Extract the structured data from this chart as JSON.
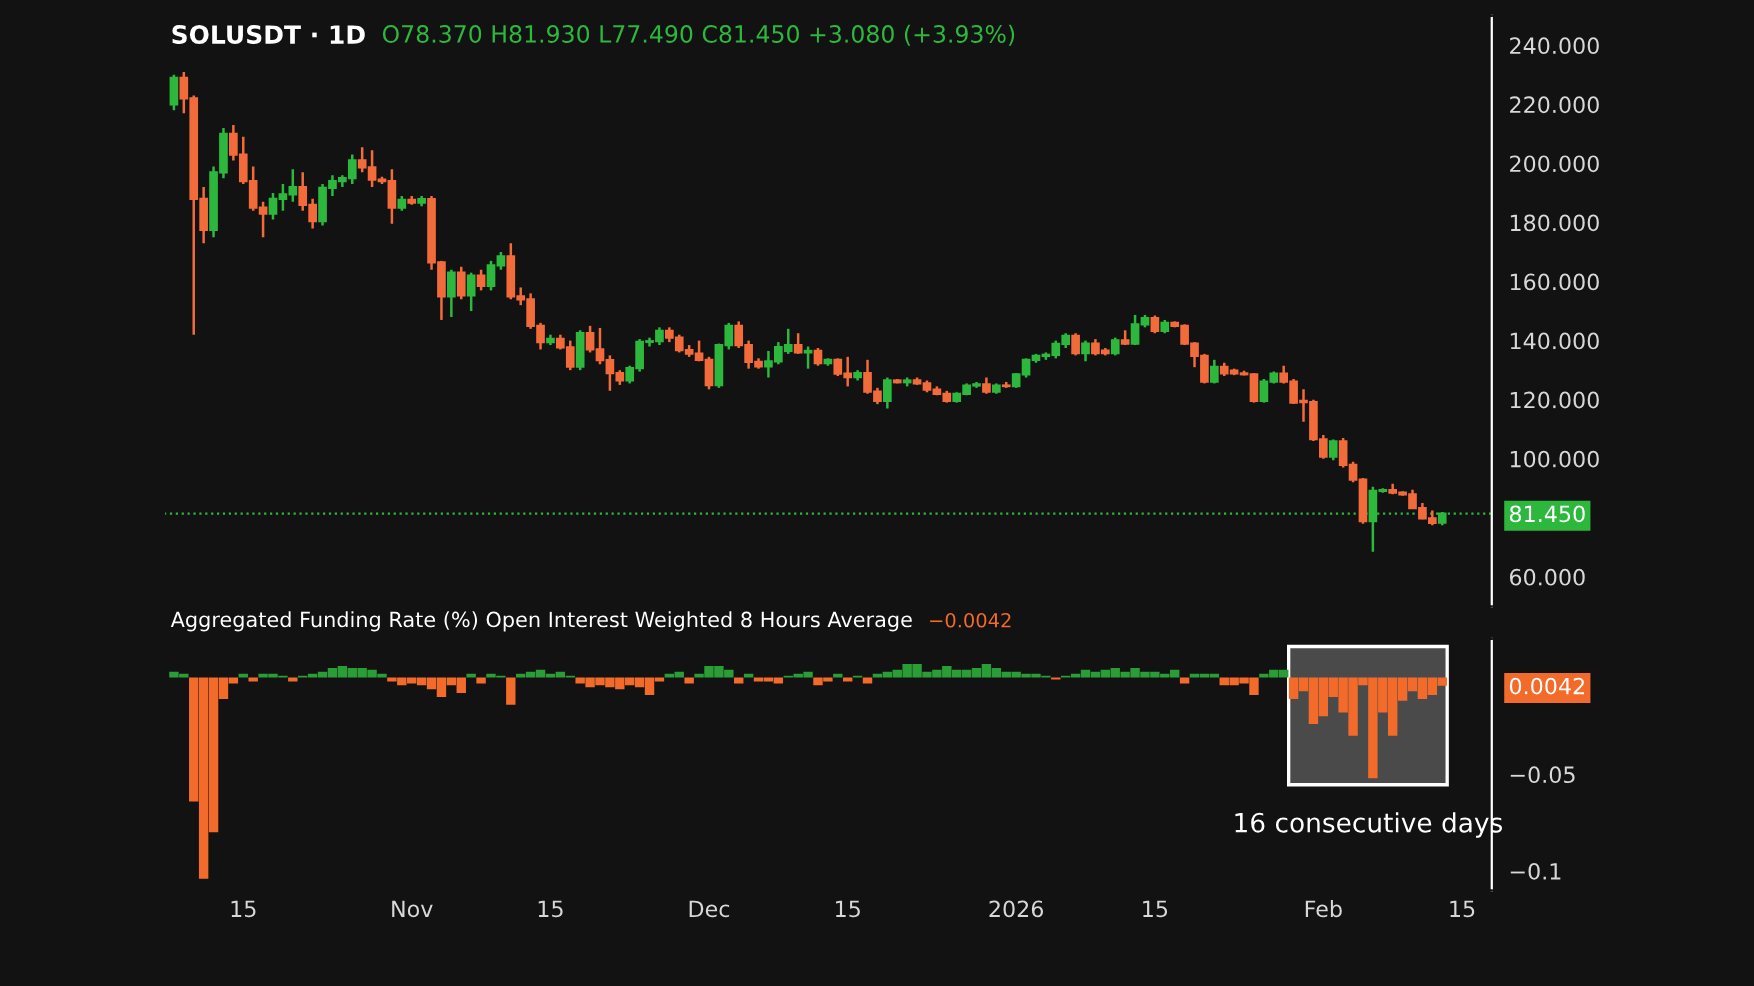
{
  "chart_data": [
    {
      "type": "candlestick",
      "title": "SOLUSDT · 1D",
      "annotations": [
        "O78.370 H81.930 L77.490 C81.450 +3.080 (+3.93%)"
      ],
      "x": [
        "2025-10-08",
        "2025-10-09",
        "2025-10-10",
        "2025-10-11",
        "2025-10-12",
        "2025-10-13",
        "2025-10-14",
        "2025-10-15",
        "2025-10-16",
        "2025-10-17",
        "2025-10-18",
        "2025-10-19",
        "2025-10-20",
        "2025-10-21",
        "2025-10-22",
        "2025-10-23",
        "2025-10-24",
        "2025-10-25",
        "2025-10-26",
        "2025-10-27",
        "2025-10-28",
        "2025-10-29",
        "2025-10-30",
        "2025-10-31",
        "2025-11-01",
        "2025-11-02",
        "2025-11-03",
        "2025-11-04",
        "2025-11-05",
        "2025-11-06",
        "2025-11-07",
        "2025-11-08",
        "2025-11-09",
        "2025-11-10",
        "2025-11-11",
        "2025-11-12",
        "2025-11-13",
        "2025-11-14",
        "2025-11-15",
        "2025-11-16",
        "2025-11-17",
        "2025-11-18",
        "2025-11-19",
        "2025-11-20",
        "2025-11-21",
        "2025-11-22",
        "2025-11-23",
        "2025-11-24",
        "2025-11-25",
        "2025-11-26",
        "2025-11-27",
        "2025-11-28",
        "2025-11-29",
        "2025-11-30",
        "2025-12-01",
        "2025-12-02",
        "2025-12-03",
        "2025-12-04",
        "2025-12-05",
        "2025-12-06",
        "2025-12-07",
        "2025-12-08",
        "2025-12-09",
        "2025-12-10",
        "2025-12-11",
        "2025-12-12",
        "2025-12-13",
        "2025-12-14",
        "2025-12-15",
        "2025-12-16",
        "2025-12-17",
        "2025-12-18",
        "2025-12-19",
        "2025-12-20",
        "2025-12-21",
        "2025-12-22",
        "2025-12-23",
        "2025-12-24",
        "2025-12-25",
        "2025-12-26",
        "2025-12-27",
        "2025-12-28",
        "2025-12-29",
        "2025-12-30",
        "2025-12-31",
        "2026-01-01",
        "2026-01-02",
        "2026-01-03",
        "2026-01-04",
        "2026-01-05",
        "2026-01-06",
        "2026-01-07",
        "2026-01-08",
        "2026-01-09",
        "2026-01-10",
        "2026-01-11",
        "2026-01-12",
        "2026-01-13",
        "2026-01-14",
        "2026-01-15",
        "2026-01-16",
        "2026-01-17",
        "2026-01-18",
        "2026-01-19",
        "2026-01-20",
        "2026-01-21",
        "2026-01-22",
        "2026-01-23",
        "2026-01-24",
        "2026-01-25",
        "2026-01-26",
        "2026-01-27",
        "2026-01-28",
        "2026-01-29",
        "2026-01-30",
        "2026-01-31",
        "2026-02-01",
        "2026-02-02",
        "2026-02-03",
        "2026-02-04",
        "2026-02-05",
        "2026-02-06",
        "2026-02-07",
        "2026-02-08",
        "2026-02-09",
        "2026-02-10",
        "2026-02-11",
        "2026-02-12",
        "2026-02-13"
      ],
      "ohlc": [
        [
          220,
          230,
          218,
          229
        ],
        [
          229,
          231,
          217,
          222
        ],
        [
          222,
          223,
          142,
          188
        ],
        [
          188,
          192,
          173,
          177.5
        ],
        [
          177.5,
          199,
          175,
          197
        ],
        [
          197,
          212,
          195,
          210
        ],
        [
          210,
          213,
          201,
          203
        ],
        [
          203,
          209,
          193,
          194
        ],
        [
          194,
          199,
          184,
          185
        ],
        [
          185,
          187,
          175,
          183
        ],
        [
          183,
          190,
          181,
          188
        ],
        [
          188,
          193,
          184,
          189.5
        ],
        [
          189.5,
          198,
          187,
          192
        ],
        [
          192,
          197,
          184,
          186
        ],
        [
          186,
          188,
          178,
          180.5
        ],
        [
          180.5,
          193,
          179,
          191.7
        ],
        [
          191.7,
          196,
          189,
          194
        ],
        [
          194,
          196,
          192,
          195
        ],
        [
          195,
          203,
          193,
          201
        ],
        [
          201,
          205.5,
          197,
          198.7
        ],
        [
          198.7,
          204.5,
          192,
          194.5
        ],
        [
          194.5,
          195.5,
          193,
          194
        ],
        [
          194,
          198,
          179.6,
          185
        ],
        [
          185,
          189,
          184,
          187.7
        ],
        [
          187.7,
          189,
          186,
          186.7
        ],
        [
          186.7,
          189,
          185.5,
          187.9
        ],
        [
          187.9,
          189,
          164,
          166.5
        ],
        [
          166.5,
          167,
          147,
          155
        ],
        [
          155,
          164,
          148,
          163
        ],
        [
          163,
          165,
          154,
          155.3
        ],
        [
          155.3,
          163,
          150,
          162
        ],
        [
          162,
          164,
          157,
          158.5
        ],
        [
          158.5,
          167,
          157,
          165.5
        ],
        [
          165.5,
          170,
          164,
          168.5
        ],
        [
          168.5,
          173,
          154,
          155
        ],
        [
          155,
          158,
          152,
          154
        ],
        [
          154,
          156,
          144,
          145
        ],
        [
          145,
          146,
          137,
          139.5
        ],
        [
          139.5,
          142,
          138.5,
          140.6
        ],
        [
          140.6,
          142,
          137,
          137.7
        ],
        [
          137.7,
          140,
          130,
          131.2
        ],
        [
          131.2,
          143.5,
          130,
          142.5
        ],
        [
          142.5,
          145,
          136,
          137
        ],
        [
          137,
          144.3,
          132,
          133.4
        ],
        [
          133.4,
          135,
          123,
          129
        ],
        [
          129,
          130,
          125,
          126.5
        ],
        [
          126.5,
          131.5,
          125.5,
          130.7
        ],
        [
          130.7,
          140.5,
          129.5,
          139.6
        ],
        [
          139.6,
          141,
          138,
          139.8
        ],
        [
          139.8,
          144.5,
          138.5,
          143.3
        ],
        [
          143.3,
          144.5,
          139.5,
          141
        ],
        [
          141,
          142,
          136,
          136.8
        ],
        [
          136.8,
          138.5,
          134.5,
          135.6
        ],
        [
          135.6,
          140,
          133,
          133.5
        ],
        [
          133.5,
          134.5,
          123.5,
          124.9
        ],
        [
          124.9,
          139,
          124,
          138.5
        ],
        [
          138.5,
          146,
          137,
          145
        ],
        [
          145,
          146.5,
          137.5,
          138.5
        ],
        [
          138.5,
          140,
          130.5,
          132.8
        ],
        [
          132.8,
          134,
          130.5,
          131.3
        ],
        [
          131.3,
          136.5,
          127.5,
          133
        ],
        [
          133,
          139.5,
          132,
          137.8
        ],
        [
          136.5,
          144,
          135.5,
          138.5
        ],
        [
          138.5,
          142.5,
          135.5,
          136
        ],
        [
          136,
          138,
          130.5,
          136.5
        ],
        [
          136.5,
          137.5,
          131.5,
          132.4
        ],
        [
          132.4,
          134,
          131.5,
          133.5
        ],
        [
          133.5,
          134,
          128,
          128.8
        ],
        [
          128.8,
          134.5,
          124.5,
          127.6
        ],
        [
          127.6,
          130,
          126.5,
          129
        ],
        [
          129,
          133.5,
          122,
          122.7
        ],
        [
          122.7,
          124,
          118.5,
          119.6
        ],
        [
          119.6,
          127.5,
          117,
          126.5
        ],
        [
          126.5,
          127,
          125.5,
          125.9
        ],
        [
          125.9,
          127.5,
          124.5,
          126.5
        ],
        [
          126.5,
          127.5,
          125,
          125.5
        ],
        [
          125.5,
          126.5,
          122.5,
          123.4
        ],
        [
          123.4,
          124.5,
          121.5,
          122
        ],
        [
          122,
          123,
          119,
          119.6
        ],
        [
          119.6,
          122.5,
          119,
          122
        ],
        [
          122,
          125.5,
          121.5,
          124.8
        ],
        [
          124.8,
          126,
          124,
          125.2
        ],
        [
          125.2,
          127.5,
          122,
          122.7
        ],
        [
          122.7,
          125.5,
          122,
          124.8
        ],
        [
          124.8,
          126,
          124,
          124.6
        ],
        [
          124.6,
          129,
          124,
          128.6
        ],
        [
          128.6,
          134,
          127.5,
          133.5
        ],
        [
          133.5,
          135.5,
          132.5,
          134.8
        ],
        [
          134.8,
          136,
          133.5,
          135.2
        ],
        [
          135.2,
          140,
          134,
          138.9
        ],
        [
          138.9,
          142.5,
          137.5,
          141.6
        ],
        [
          141.6,
          142.5,
          135,
          135.8
        ],
        [
          135.8,
          140,
          133,
          139
        ],
        [
          139,
          140.5,
          135,
          135.8
        ],
        [
          136.6,
          137.5,
          135,
          135.8
        ],
        [
          135.8,
          141,
          135,
          140.1
        ],
        [
          140.1,
          143.5,
          138.5,
          139
        ],
        [
          139,
          148.7,
          138.5,
          145.5
        ],
        [
          145.5,
          148.7,
          144.5,
          147.6
        ],
        [
          147.6,
          148.5,
          142.5,
          143.3
        ],
        [
          143.3,
          147,
          142.5,
          146
        ],
        [
          146,
          146.5,
          144.5,
          145
        ],
        [
          145,
          145.5,
          138.5,
          139
        ],
        [
          139,
          139.5,
          131,
          134.8
        ],
        [
          134.8,
          135.5,
          125.5,
          126.1
        ],
        [
          126.1,
          133.5,
          125.5,
          131.1
        ],
        [
          131.1,
          132.5,
          128,
          128.9
        ],
        [
          129.8,
          130.5,
          128.3,
          128.9
        ],
        [
          128.9,
          129.8,
          128.2,
          128.6
        ],
        [
          128.6,
          129,
          119,
          119.6
        ],
        [
          119.6,
          127,
          119,
          126.1
        ],
        [
          126.1,
          129.5,
          125.5,
          128.8
        ],
        [
          128.8,
          131.5,
          125.5,
          126.1
        ],
        [
          126.1,
          127,
          118.5,
          119
        ],
        [
          119.6,
          123.5,
          112.5,
          119.2
        ],
        [
          119.2,
          120,
          106,
          106.6
        ],
        [
          106.6,
          108,
          100,
          100.7
        ],
        [
          100.7,
          106.5,
          99.5,
          105.9
        ],
        [
          105.9,
          107,
          97,
          97.9
        ],
        [
          97.9,
          99,
          92,
          92.9
        ],
        [
          92.9,
          93.5,
          78,
          78.9
        ],
        [
          78.9,
          90.5,
          68.5,
          89.1
        ],
        [
          89.1,
          90,
          88.5,
          89.4
        ],
        [
          89.4,
          91.5,
          88,
          88.5
        ],
        [
          88.5,
          89,
          87.5,
          87.9
        ],
        [
          87.9,
          89.5,
          83,
          83.3
        ],
        [
          83.3,
          85,
          79.5,
          79.8
        ],
        [
          79.8,
          82.5,
          77.5,
          78.3
        ],
        [
          78.37,
          81.93,
          77.49,
          81.45
        ]
      ],
      "colors": [
        "#2db83d",
        "#f26b3a",
        "#f26b3a",
        "#f26b3a",
        "#2db83d",
        "#2db83d",
        "#f26b3a",
        "#f26b3a",
        "#f26b3a",
        "#f26b3a",
        "#2db83d",
        "#2db83d",
        "#2db83d",
        "#f26b3a",
        "#f26b3a",
        "#2db83d",
        "#2db83d",
        "#2db83d",
        "#2db83d",
        "#f26b3a",
        "#f26b3a",
        "#f26b3a",
        "#f26b3a",
        "#2db83d",
        "#f26b3a",
        "#2db83d",
        "#f26b3a",
        "#f26b3a",
        "#2db83d",
        "#f26b3a",
        "#2db83d",
        "#f26b3a",
        "#2db83d",
        "#2db83d",
        "#f26b3a",
        "#f26b3a",
        "#f26b3a",
        "#f26b3a",
        "#2db83d",
        "#f26b3a",
        "#f26b3a",
        "#2db83d",
        "#f26b3a",
        "#f26b3a",
        "#f26b3a",
        "#f26b3a",
        "#2db83d",
        "#2db83d",
        "#2db83d",
        "#2db83d",
        "#f26b3a",
        "#f26b3a",
        "#f26b3a",
        "#f26b3a",
        "#f26b3a",
        "#2db83d",
        "#2db83d",
        "#f26b3a",
        "#f26b3a",
        "#f26b3a",
        "#2db83d",
        "#2db83d",
        "#2db83d",
        "#f26b3a",
        "#2db83d",
        "#f26b3a",
        "#2db83d",
        "#f26b3a",
        "#f26b3a",
        "#2db83d",
        "#f26b3a",
        "#f26b3a",
        "#2db83d",
        "#f26b3a",
        "#2db83d",
        "#f26b3a",
        "#f26b3a",
        "#f26b3a",
        "#f26b3a",
        "#2db83d",
        "#2db83d",
        "#2db83d",
        "#f26b3a",
        "#2db83d",
        "#f26b3a",
        "#2db83d",
        "#2db83d",
        "#2db83d",
        "#2db83d",
        "#2db83d",
        "#2db83d",
        "#f26b3a",
        "#2db83d",
        "#f26b3a",
        "#f26b3a",
        "#2db83d",
        "#f26b3a",
        "#2db83d",
        "#2db83d",
        "#f26b3a",
        "#2db83d",
        "#f26b3a",
        "#f26b3a",
        "#f26b3a",
        "#f26b3a",
        "#2db83d",
        "#f26b3a",
        "#f26b3a",
        "#f26b3a",
        "#f26b3a",
        "#2db83d",
        "#2db83d",
        "#f26b3a",
        "#f26b3a",
        "#f26b3a",
        "#f26b3a",
        "#f26b3a",
        "#2db83d",
        "#f26b3a",
        "#f26b3a",
        "#f26b3a",
        "#2db83d",
        "#2db83d",
        "#f26b3a",
        "#f26b3a",
        "#f26b3a",
        "#f26b3a",
        "#f26b3a",
        "#2db83d"
      ],
      "xlim": [
        "2025-10-07",
        "2026-02-18"
      ],
      "ylim": [
        50,
        250
      ],
      "yticks": [
        {
          "value": 60,
          "label": "60.000"
        },
        {
          "value": 81.45,
          "label": "81.450"
        },
        {
          "value": 100,
          "label": "100.000"
        },
        {
          "value": 120,
          "label": "120.000"
        },
        {
          "value": 140,
          "label": "140.000"
        },
        {
          "value": 160,
          "label": "160.000"
        },
        {
          "value": 180,
          "label": "180.000"
        },
        {
          "value": 200,
          "label": "200.000"
        },
        {
          "value": 220,
          "label": "220.000"
        },
        {
          "value": 240,
          "label": "240.000"
        }
      ],
      "ref_lines": [
        {
          "axis": "y",
          "value": 81.45,
          "color": "#2db83d",
          "line_style": "dotted"
        }
      ],
      "tick_labels": "y",
      "grid": false
    },
    {
      "type": "bar",
      "title": "Aggregated Funding Rate (%) Open Interest Weighted 8 Hours Average",
      "annotations": [
        "−0.0042"
      ],
      "x": [
        "2025-10-08",
        "2025-10-09",
        "2025-10-10",
        "2025-10-11",
        "2025-10-12",
        "2025-10-13",
        "2025-10-14",
        "2025-10-15",
        "2025-10-16",
        "2025-10-17",
        "2025-10-18",
        "2025-10-19",
        "2025-10-20",
        "2025-10-21",
        "2025-10-22",
        "2025-10-23",
        "2025-10-24",
        "2025-10-25",
        "2025-10-26",
        "2025-10-27",
        "2025-10-28",
        "2025-10-29",
        "2025-10-30",
        "2025-10-31",
        "2025-11-01",
        "2025-11-02",
        "2025-11-03",
        "2025-11-04",
        "2025-11-05",
        "2025-11-06",
        "2025-11-07",
        "2025-11-08",
        "2025-11-09",
        "2025-11-10",
        "2025-11-11",
        "2025-11-12",
        "2025-11-13",
        "2025-11-14",
        "2025-11-15",
        "2025-11-16",
        "2025-11-17",
        "2025-11-18",
        "2025-11-19",
        "2025-11-20",
        "2025-11-21",
        "2025-11-22",
        "2025-11-23",
        "2025-11-24",
        "2025-11-25",
        "2025-11-26",
        "2025-11-27",
        "2025-11-28",
        "2025-11-29",
        "2025-11-30",
        "2025-12-01",
        "2025-12-02",
        "2025-12-03",
        "2025-12-04",
        "2025-12-05",
        "2025-12-06",
        "2025-12-07",
        "2025-12-08",
        "2025-12-09",
        "2025-12-10",
        "2025-12-11",
        "2025-12-12",
        "2025-12-13",
        "2025-12-14",
        "2025-12-15",
        "2025-12-16",
        "2025-12-17",
        "2025-12-18",
        "2025-12-19",
        "2025-12-20",
        "2025-12-21",
        "2025-12-22",
        "2025-12-23",
        "2025-12-24",
        "2025-12-25",
        "2025-12-26",
        "2025-12-27",
        "2025-12-28",
        "2025-12-29",
        "2025-12-30",
        "2025-12-31",
        "2026-01-01",
        "2026-01-02",
        "2026-01-03",
        "2026-01-04",
        "2026-01-05",
        "2026-01-06",
        "2026-01-07",
        "2026-01-08",
        "2026-01-09",
        "2026-01-10",
        "2026-01-11",
        "2026-01-12",
        "2026-01-13",
        "2026-01-14",
        "2026-01-15",
        "2026-01-16",
        "2026-01-17",
        "2026-01-18",
        "2026-01-19",
        "2026-01-20",
        "2026-01-21",
        "2026-01-22",
        "2026-01-23",
        "2026-01-24",
        "2026-01-25",
        "2026-01-26",
        "2026-01-27",
        "2026-01-28",
        "2026-01-29",
        "2026-01-30",
        "2026-01-31",
        "2026-02-01",
        "2026-02-02",
        "2026-02-03",
        "2026-02-04",
        "2026-02-05",
        "2026-02-06",
        "2026-02-07",
        "2026-02-08",
        "2026-02-09",
        "2026-02-10",
        "2026-02-11",
        "2026-02-12",
        "2026-02-13"
      ],
      "values": [
        0.003,
        0.002,
        -0.064,
        -0.104,
        -0.08,
        -0.011,
        -0.003,
        0.002,
        -0.002,
        0.002,
        0.002,
        0.001,
        -0.002,
        0.001,
        0.002,
        0.003,
        0.005,
        0.006,
        0.005,
        0.005,
        0.004,
        0.002,
        -0.002,
        -0.004,
        -0.003,
        -0.004,
        -0.006,
        -0.01,
        -0.004,
        -0.008,
        0.002,
        -0.003,
        0.002,
        0.001,
        -0.014,
        0.002,
        0.003,
        0.004,
        0.002,
        0.003,
        0.001,
        -0.003,
        -0.005,
        -0.004,
        -0.005,
        -0.006,
        -0.004,
        -0.005,
        -0.009,
        -0.002,
        0.002,
        0.003,
        -0.003,
        0.002,
        0.006,
        0.006,
        0.004,
        -0.003,
        0.002,
        -0.002,
        -0.002,
        -0.003,
        0.001,
        0.002,
        0.003,
        -0.004,
        -0.002,
        0.002,
        -0.002,
        0.001,
        -0.003,
        0.002,
        0.003,
        0.004,
        0.007,
        0.007,
        0.003,
        0.004,
        0.006,
        0.004,
        0.004,
        0.005,
        0.007,
        0.005,
        0.003,
        0.003,
        0.002,
        0.002,
        0.001,
        -0.001,
        0.001,
        0.002,
        0.004,
        0.003,
        0.004,
        0.005,
        0.003,
        0.005,
        0.003,
        0.003,
        0.002,
        0.004,
        -0.003,
        0.002,
        0.002,
        0.002,
        -0.004,
        -0.004,
        -0.003,
        -0.009,
        0.002,
        0.004,
        0.004,
        -0.011,
        -0.007,
        -0.024,
        -0.02,
        -0.01,
        -0.018,
        -0.03,
        -0.004,
        -0.052,
        -0.018,
        -0.03,
        -0.012,
        -0.007,
        -0.011,
        -0.009,
        -0.0042
      ],
      "colors": [
        "#2a9d36",
        "#2a9d36",
        "#f26b2a",
        "#f26b2a",
        "#f26b2a",
        "#f26b2a",
        "#f26b2a",
        "#2a9d36",
        "#f26b2a",
        "#2a9d36",
        "#2a9d36",
        "#2a9d36",
        "#f26b2a",
        "#2a9d36",
        "#2a9d36",
        "#2a9d36",
        "#2a9d36",
        "#2a9d36",
        "#2a9d36",
        "#2a9d36",
        "#2a9d36",
        "#2a9d36",
        "#f26b2a",
        "#f26b2a",
        "#f26b2a",
        "#f26b2a",
        "#f26b2a",
        "#f26b2a",
        "#f26b2a",
        "#f26b2a",
        "#2a9d36",
        "#f26b2a",
        "#2a9d36",
        "#2a9d36",
        "#f26b2a",
        "#2a9d36",
        "#2a9d36",
        "#2a9d36",
        "#2a9d36",
        "#2a9d36",
        "#2a9d36",
        "#f26b2a",
        "#f26b2a",
        "#f26b2a",
        "#f26b2a",
        "#f26b2a",
        "#f26b2a",
        "#f26b2a",
        "#f26b2a",
        "#f26b2a",
        "#2a9d36",
        "#2a9d36",
        "#f26b2a",
        "#2a9d36",
        "#2a9d36",
        "#2a9d36",
        "#2a9d36",
        "#f26b2a",
        "#2a9d36",
        "#f26b2a",
        "#f26b2a",
        "#f26b2a",
        "#2a9d36",
        "#2a9d36",
        "#2a9d36",
        "#f26b2a",
        "#f26b2a",
        "#2a9d36",
        "#f26b2a",
        "#2a9d36",
        "#f26b2a",
        "#2a9d36",
        "#2a9d36",
        "#2a9d36",
        "#2a9d36",
        "#2a9d36",
        "#2a9d36",
        "#2a9d36",
        "#2a9d36",
        "#2a9d36",
        "#2a9d36",
        "#2a9d36",
        "#2a9d36",
        "#2a9d36",
        "#2a9d36",
        "#2a9d36",
        "#2a9d36",
        "#2a9d36",
        "#2a9d36",
        "#f26b2a",
        "#2a9d36",
        "#2a9d36",
        "#2a9d36",
        "#2a9d36",
        "#2a9d36",
        "#2a9d36",
        "#2a9d36",
        "#2a9d36",
        "#2a9d36",
        "#2a9d36",
        "#2a9d36",
        "#2a9d36",
        "#f26b2a",
        "#2a9d36",
        "#2a9d36",
        "#2a9d36",
        "#f26b2a",
        "#f26b2a",
        "#f26b2a",
        "#f26b2a",
        "#2a9d36",
        "#2a9d36",
        "#2a9d36",
        "#f26b2a",
        "#f26b2a",
        "#f26b2a",
        "#f26b2a",
        "#f26b2a",
        "#f26b2a",
        "#f26b2a",
        "#f26b2a",
        "#f26b2a",
        "#f26b2a",
        "#f26b2a",
        "#f26b2a",
        "#f26b2a",
        "#f26b2a",
        "#f26b2a",
        "#f26b2a"
      ],
      "xlim": [
        "2025-10-07",
        "2026-02-18"
      ],
      "ylim": [
        -0.11,
        0.02
      ],
      "xticks": [
        {
          "value": "2025-10-15",
          "label": "15"
        },
        {
          "value": "2025-11-01",
          "label": "Nov"
        },
        {
          "value": "2025-11-15",
          "label": "15"
        },
        {
          "value": "2025-12-01",
          "label": "Dec"
        },
        {
          "value": "2025-12-15",
          "label": "15"
        },
        {
          "value": "2026-01-01",
          "label": "2026"
        },
        {
          "value": "2026-01-15",
          "label": "15"
        },
        {
          "value": "2026-02-01",
          "label": "Feb"
        },
        {
          "value": "2026-02-15",
          "label": "15"
        }
      ],
      "yticks": [
        {
          "value": -0.1,
          "label": "−0.1"
        },
        {
          "value": -0.05,
          "label": "−0.05"
        },
        {
          "value": -0.0042,
          "label": "0.0042"
        }
      ],
      "bands": [
        {
          "axis": "x",
          "from": "2026-01-28T12:00",
          "to": "2026-02-13T12:00",
          "label": "16 consecutive days",
          "color": "#4a4a4a"
        }
      ],
      "grid": false
    }
  ]
}
